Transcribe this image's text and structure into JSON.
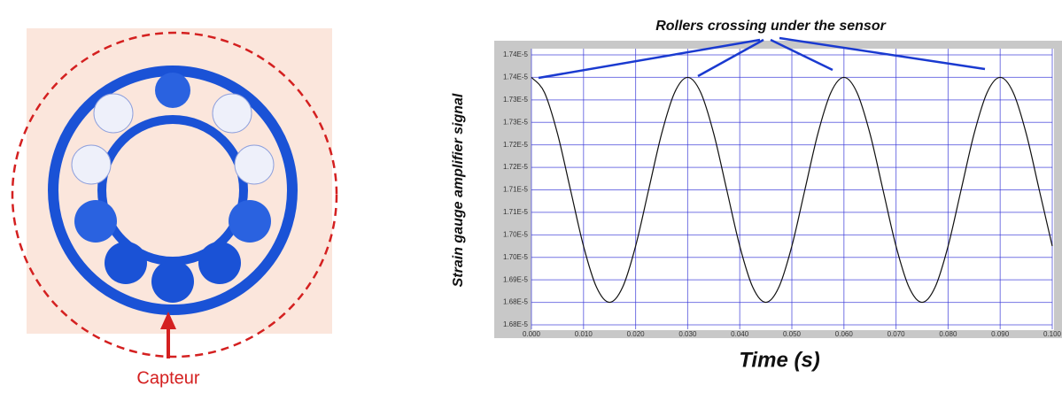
{
  "figure_label": "Capteur",
  "chart_data": {
    "type": "line",
    "title": "Rollers crossing under the sensor",
    "y_label": "Strain gauge amplifier signal",
    "x_label": "Time (s)",
    "xlim": [
      0,
      0.1
    ],
    "ylim": [
      1.68e-05,
      1.74e-05
    ],
    "xticks": [
      {
        "value": 0,
        "label": "0.000"
      },
      {
        "value": 0.01,
        "label": "0.010"
      },
      {
        "value": 0.02,
        "label": "0.020"
      },
      {
        "value": 0.03,
        "label": "0.030"
      },
      {
        "value": 0.04,
        "label": "0.040"
      },
      {
        "value": 0.05,
        "label": "0.050"
      },
      {
        "value": 0.06,
        "label": "0.060"
      },
      {
        "value": 0.07,
        "label": "0.070"
      },
      {
        "value": 0.08,
        "label": "0.080"
      },
      {
        "value": 0.09,
        "label": "0.090"
      },
      {
        "value": 0.1,
        "label": "0.100"
      }
    ],
    "yticks": [
      {
        "value": 1.68e-05,
        "label": "1.68E-5"
      },
      {
        "value": 1.685e-05,
        "label": "1.68E-5"
      },
      {
        "value": 1.69e-05,
        "label": "1.69E-5"
      },
      {
        "value": 1.695e-05,
        "label": "1.70E-5"
      },
      {
        "value": 1.7e-05,
        "label": "1.70E-5"
      },
      {
        "value": 1.705e-05,
        "label": "1.71E-5"
      },
      {
        "value": 1.71e-05,
        "label": "1.71E-5"
      },
      {
        "value": 1.715e-05,
        "label": "1.72E-5"
      },
      {
        "value": 1.72e-05,
        "label": "1.72E-5"
      },
      {
        "value": 1.725e-05,
        "label": "1.73E-5"
      },
      {
        "value": 1.73e-05,
        "label": "1.73E-5"
      },
      {
        "value": 1.735e-05,
        "label": "1.74E-5"
      },
      {
        "value": 1.74e-05,
        "label": "1.74E-5"
      }
    ],
    "grid": true,
    "color": "#111111",
    "grid_color": "#3a3ad8",
    "x": [
      0,
      0.0025,
      0.005,
      0.0075,
      0.01,
      0.0125,
      0.015,
      0.0175,
      0.02,
      0.0225,
      0.025,
      0.0275,
      0.03,
      0.0325,
      0.035,
      0.0375,
      0.04,
      0.0425,
      0.045,
      0.0475,
      0.05,
      0.0525,
      0.055,
      0.0575,
      0.06,
      0.0625,
      0.065,
      0.0675,
      0.07,
      0.0725,
      0.075,
      0.0775,
      0.08,
      0.0825,
      0.085,
      0.0875,
      0.09,
      0.0925,
      0.095,
      0.0975,
      0.1
    ],
    "values": [
      1.735e-05,
      1.73165e-05,
      1.7225e-05,
      1.71e-05,
      1.6975e-05,
      1.68835e-05,
      1.685e-05,
      1.68835e-05,
      1.6975e-05,
      1.71e-05,
      1.7225e-05,
      1.73165e-05,
      1.735e-05,
      1.73165e-05,
      1.7225e-05,
      1.71e-05,
      1.6975e-05,
      1.68835e-05,
      1.685e-05,
      1.68835e-05,
      1.6975e-05,
      1.71e-05,
      1.7225e-05,
      1.73165e-05,
      1.735e-05,
      1.73165e-05,
      1.7225e-05,
      1.71e-05,
      1.6975e-05,
      1.68835e-05,
      1.685e-05,
      1.68835e-05,
      1.6975e-05,
      1.71e-05,
      1.7225e-05,
      1.73165e-05,
      1.735e-05,
      1.73165e-05,
      1.7225e-05,
      1.71e-05,
      1.6975e-05
    ]
  }
}
